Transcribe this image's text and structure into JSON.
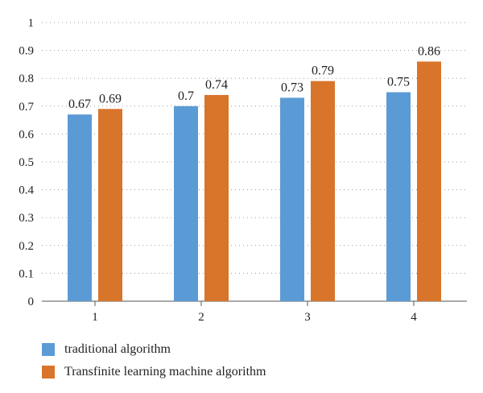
{
  "chart_data": {
    "type": "bar",
    "categories": [
      "1",
      "2",
      "3",
      "4"
    ],
    "series": [
      {
        "name": "traditional algorithm",
        "values": [
          0.67,
          0.7,
          0.73,
          0.75
        ],
        "color": "#5b9bd5"
      },
      {
        "name": "Transfinite learning machine algorithm",
        "values": [
          0.69,
          0.74,
          0.79,
          0.86
        ],
        "color": "#d9742b"
      }
    ],
    "data_labels": [
      [
        "0.67",
        "0.7",
        "0.73",
        "0.75"
      ],
      [
        "0.69",
        "0.74",
        "0.79",
        "0.86"
      ]
    ],
    "y_ticks": [
      "0",
      "0.1",
      "0.2",
      "0.3",
      "0.4",
      "0.5",
      "0.6",
      "0.7",
      "0.8",
      "0.9",
      "1"
    ],
    "ylim": [
      0,
      1
    ],
    "grid": "dotted",
    "legend_position": "bottom-left",
    "title": "",
    "xlabel": "",
    "ylabel": ""
  }
}
